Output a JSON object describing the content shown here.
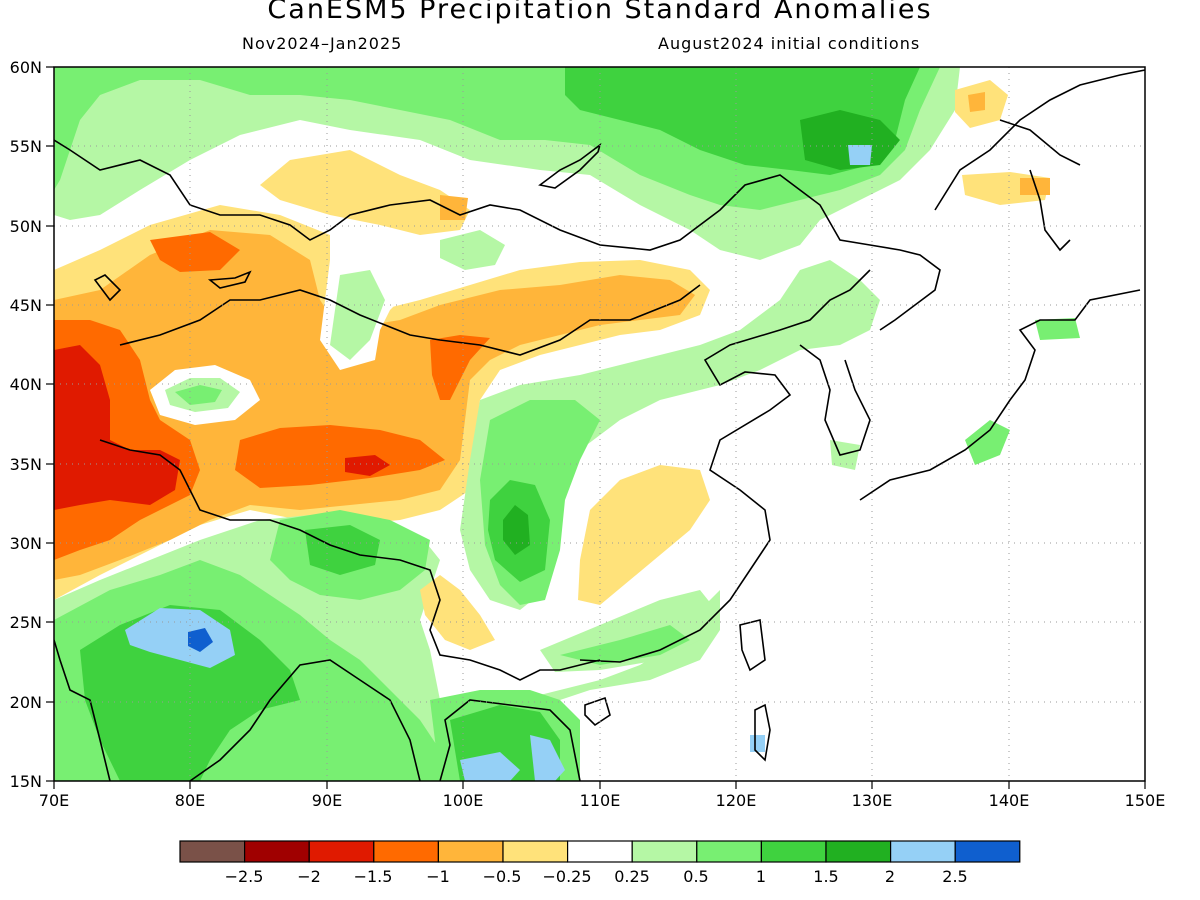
{
  "title": "CanESM5 Precipitation Standard Anomalies",
  "period": "Nov2024–Jan2025",
  "init": "August2024 initial conditions",
  "axes": {
    "lon": [
      "70E",
      "80E",
      "90E",
      "100E",
      "110E",
      "120E",
      "130E",
      "140E",
      "150E"
    ],
    "lat": [
      "60N",
      "55N",
      "50N",
      "45N",
      "40N",
      "35N",
      "30N",
      "25N",
      "20N",
      "15N"
    ]
  },
  "legend": {
    "colors": [
      "#7a5148",
      "#a00000",
      "#e01a00",
      "#ff6a00",
      "#ffb53a",
      "#ffe27a",
      "#ffffff",
      "#b5f7a5",
      "#78ef72",
      "#3fd23f",
      "#21b021",
      "#95d0f6",
      "#0f5fcf"
    ],
    "labels": [
      "−2.5",
      "−2",
      "−1.5",
      "−1",
      "−0.5",
      "−0.25",
      "0.25",
      "0.5",
      "1",
      "1.5",
      "2",
      "2.5"
    ]
  },
  "colors": {
    "dry1": "#ffe27a",
    "dry2": "#ffb53a",
    "dry3": "#ff6a00",
    "dry4": "#e01a00",
    "dry5": "#a00000",
    "wet1": "#b5f7a5",
    "wet2": "#78ef72",
    "wet3": "#3fd23f",
    "wet4": "#21b021",
    "wet5": "#95d0f6",
    "wet6": "#0f5fcf"
  }
}
